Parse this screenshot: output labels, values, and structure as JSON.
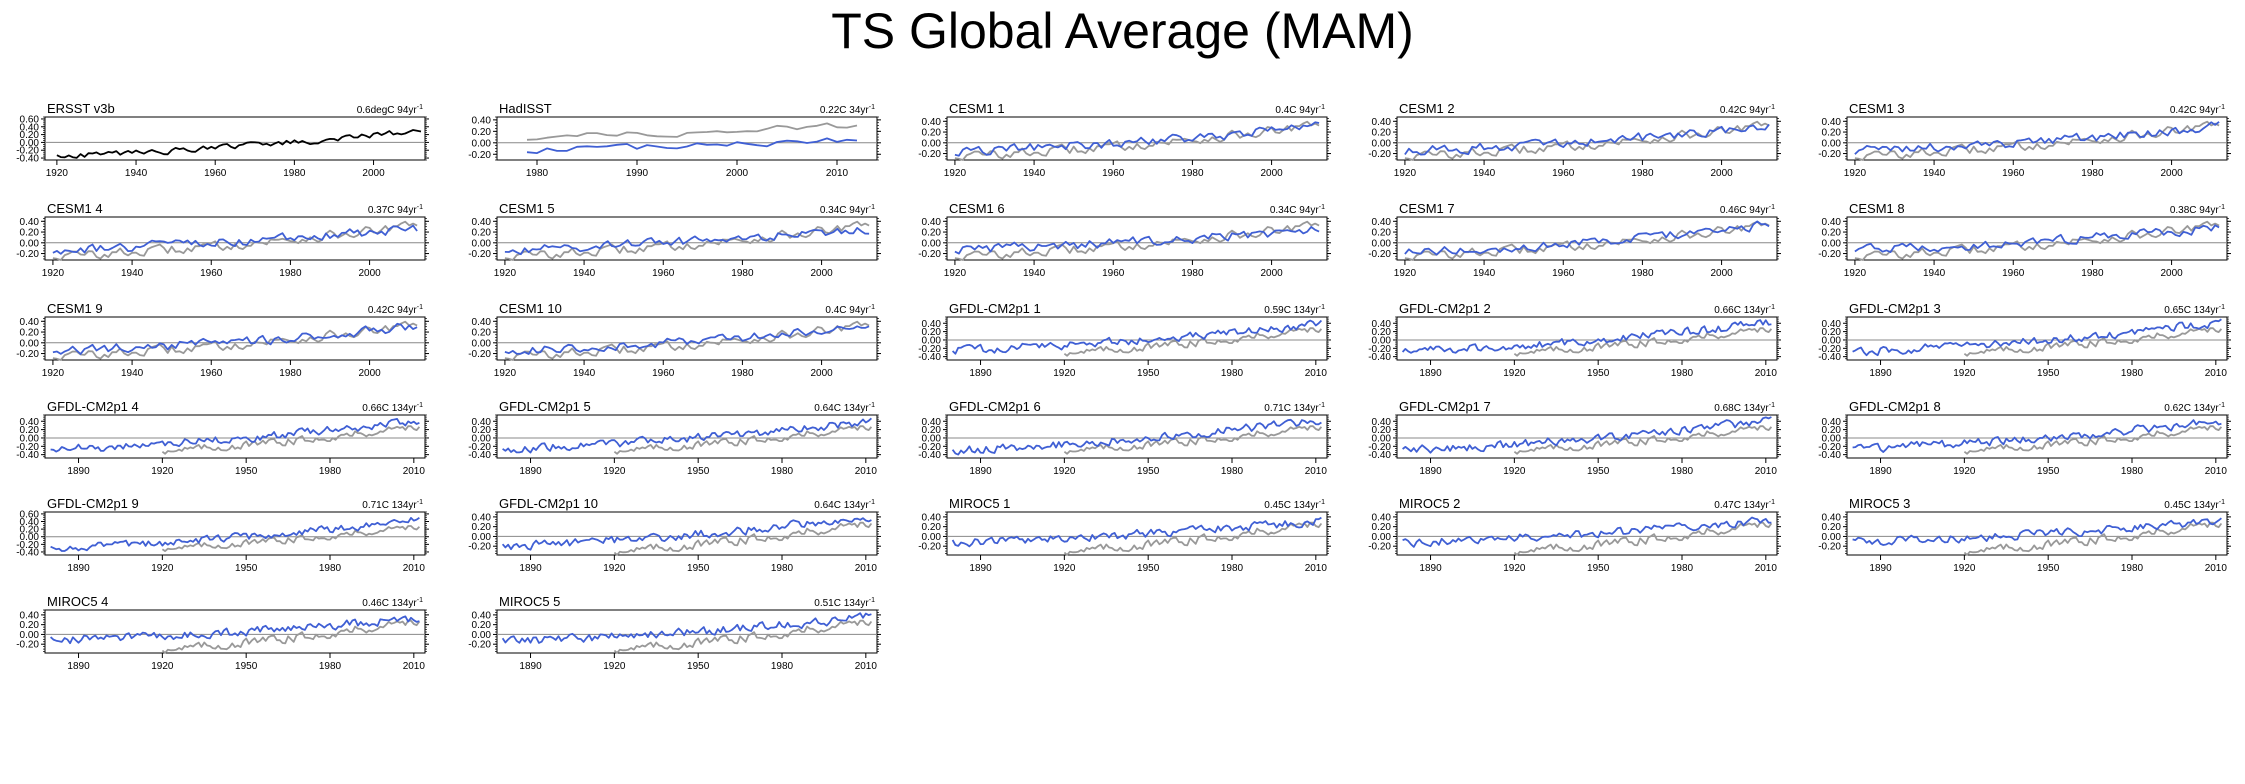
{
  "title": "TS Global Average (MAM)",
  "colors": {
    "observed": "#999999",
    "model": "#3f5fd4",
    "obs_only": "#000000",
    "zero_line": "#888888"
  },
  "axis_sets": {
    "a": {
      "xlim": [
        1917,
        2013
      ],
      "ylim": [
        -0.45,
        0.65
      ],
      "xticks": [
        1920,
        1940,
        1960,
        1980,
        2000
      ],
      "yticks": [
        -0.4,
        -0.2,
        0.0,
        0.2,
        0.4,
        0.6
      ],
      "yticklabels": [
        "-0.40",
        "-0.20",
        "0.00",
        "0.20",
        "0.40",
        "0.60"
      ]
    },
    "b": {
      "xlim": [
        1976,
        2014
      ],
      "ylim": [
        -0.3,
        0.45
      ],
      "xticks": [
        1980,
        1990,
        2000,
        2010
      ],
      "yticks": [
        -0.2,
        0.0,
        0.2,
        0.4
      ],
      "yticklabels": [
        "-0.20",
        "0.00",
        "0.20",
        "0.40"
      ]
    },
    "c": {
      "xlim": [
        1918,
        2014
      ],
      "ylim": [
        -0.32,
        0.48
      ],
      "xticks": [
        1920,
        1940,
        1960,
        1980,
        2000
      ],
      "yticks": [
        -0.2,
        0.0,
        0.2,
        0.4
      ],
      "yticklabels": [
        "-0.20",
        "0.00",
        "0.20",
        "0.40"
      ]
    },
    "d": {
      "xlim": [
        1878,
        2014
      ],
      "ylim": [
        -0.48,
        0.55
      ],
      "xticks": [
        1890,
        1920,
        1950,
        1980,
        2010
      ],
      "yticks": [
        -0.4,
        -0.2,
        0.0,
        0.2,
        0.4
      ],
      "yticklabels": [
        "-0.40",
        "-0.20",
        "0.00",
        "0.20",
        "0.40"
      ]
    },
    "e": {
      "xlim": [
        1878,
        2014
      ],
      "ylim": [
        -0.48,
        0.65
      ],
      "xticks": [
        1890,
        1920,
        1950,
        1980,
        2010
      ],
      "yticks": [
        -0.4,
        -0.2,
        0.0,
        0.2,
        0.4,
        0.6
      ],
      "yticklabels": [
        "-0.40",
        "-0.20",
        "0.00",
        "0.20",
        "0.40",
        "0.60"
      ]
    },
    "f": {
      "xlim": [
        1878,
        2014
      ],
      "ylim": [
        -0.38,
        0.5
      ],
      "xticks": [
        1890,
        1920,
        1950,
        1980,
        2010
      ],
      "yticks": [
        -0.2,
        0.0,
        0.2,
        0.4
      ],
      "yticklabels": [
        "-0.20",
        "0.00",
        "0.20",
        "0.40"
      ]
    }
  },
  "chart_data": [
    {
      "type": "line",
      "name": "ERSST v3b",
      "trend": "0.6degC 94yr",
      "trend_sup": "-1",
      "axes": "a",
      "mode": "obs",
      "model": {
        "start": 1920,
        "end": 2012,
        "y0": -0.35,
        "y1": 0.3,
        "seed": 11,
        "amp": 0.07
      }
    },
    {
      "type": "line",
      "name": "HadISST",
      "trend": "0.22C 34yr",
      "trend_sup": "-1",
      "axes": "b",
      "mode": "hadisst",
      "observed": {
        "start": 1979,
        "end": 2012,
        "y0": 0.1,
        "y1": 0.32,
        "seed": 21,
        "amp": 0.05
      },
      "model": {
        "start": 1979,
        "end": 2012,
        "y0": -0.12,
        "y1": 0.06,
        "seed": 22,
        "amp": 0.05
      }
    },
    {
      "type": "line",
      "name": "CESM1 1",
      "trend": "0.4C 94yr",
      "trend_sup": "-1",
      "axes": "c",
      "mode": "both",
      "observed": {
        "start": 1920,
        "end": 2012,
        "y0": -0.25,
        "y1": 0.32,
        "seed": 1,
        "amp": 0.08
      },
      "model": {
        "start": 1920,
        "end": 2012,
        "y0": -0.15,
        "y1": 0.3,
        "seed": 101,
        "amp": 0.08
      }
    },
    {
      "type": "line",
      "name": "CESM1 2",
      "trend": "0.42C 94yr",
      "trend_sup": "-1",
      "axes": "c",
      "mode": "both",
      "observed": {
        "start": 1920,
        "end": 2012,
        "y0": -0.25,
        "y1": 0.32,
        "seed": 1,
        "amp": 0.08
      },
      "model": {
        "start": 1920,
        "end": 2012,
        "y0": -0.15,
        "y1": 0.31,
        "seed": 102,
        "amp": 0.08
      }
    },
    {
      "type": "line",
      "name": "CESM1 3",
      "trend": "0.42C 94yr",
      "trend_sup": "-1",
      "axes": "c",
      "mode": "both",
      "observed": {
        "start": 1920,
        "end": 2012,
        "y0": -0.25,
        "y1": 0.32,
        "seed": 1,
        "amp": 0.08
      },
      "model": {
        "start": 1920,
        "end": 2012,
        "y0": -0.15,
        "y1": 0.31,
        "seed": 103,
        "amp": 0.08
      }
    },
    {
      "type": "line",
      "name": "CESM1 4",
      "trend": "0.37C 94yr",
      "trend_sup": "-1",
      "axes": "c",
      "mode": "both",
      "observed": {
        "start": 1920,
        "end": 2012,
        "y0": -0.25,
        "y1": 0.32,
        "seed": 1,
        "amp": 0.08
      },
      "model": {
        "start": 1920,
        "end": 2012,
        "y0": -0.13,
        "y1": 0.28,
        "seed": 104,
        "amp": 0.08
      }
    },
    {
      "type": "line",
      "name": "CESM1 5",
      "trend": "0.34C 94yr",
      "trend_sup": "-1",
      "axes": "c",
      "mode": "both",
      "observed": {
        "start": 1920,
        "end": 2012,
        "y0": -0.25,
        "y1": 0.32,
        "seed": 1,
        "amp": 0.08
      },
      "model": {
        "start": 1920,
        "end": 2012,
        "y0": -0.12,
        "y1": 0.26,
        "seed": 105,
        "amp": 0.08
      }
    },
    {
      "type": "line",
      "name": "CESM1 6",
      "trend": "0.34C 94yr",
      "trend_sup": "-1",
      "axes": "c",
      "mode": "both",
      "observed": {
        "start": 1920,
        "end": 2012,
        "y0": -0.25,
        "y1": 0.32,
        "seed": 1,
        "amp": 0.08
      },
      "model": {
        "start": 1920,
        "end": 2012,
        "y0": -0.12,
        "y1": 0.26,
        "seed": 106,
        "amp": 0.08
      }
    },
    {
      "type": "line",
      "name": "CESM1 7",
      "trend": "0.46C 94yr",
      "trend_sup": "-1",
      "axes": "c",
      "mode": "both",
      "observed": {
        "start": 1920,
        "end": 2012,
        "y0": -0.25,
        "y1": 0.32,
        "seed": 1,
        "amp": 0.08
      },
      "model": {
        "start": 1920,
        "end": 2012,
        "y0": -0.17,
        "y1": 0.33,
        "seed": 107,
        "amp": 0.08
      }
    },
    {
      "type": "line",
      "name": "CESM1 8",
      "trend": "0.38C 94yr",
      "trend_sup": "-1",
      "axes": "c",
      "mode": "both",
      "observed": {
        "start": 1920,
        "end": 2012,
        "y0": -0.25,
        "y1": 0.32,
        "seed": 1,
        "amp": 0.08
      },
      "model": {
        "start": 1920,
        "end": 2012,
        "y0": -0.13,
        "y1": 0.29,
        "seed": 108,
        "amp": 0.08
      }
    },
    {
      "type": "line",
      "name": "CESM1 9",
      "trend": "0.42C 94yr",
      "trend_sup": "-1",
      "axes": "c",
      "mode": "both",
      "observed": {
        "start": 1920,
        "end": 2012,
        "y0": -0.25,
        "y1": 0.32,
        "seed": 1,
        "amp": 0.08
      },
      "model": {
        "start": 1920,
        "end": 2012,
        "y0": -0.15,
        "y1": 0.31,
        "seed": 109,
        "amp": 0.08
      }
    },
    {
      "type": "line",
      "name": "CESM1 10",
      "trend": "0.4C 94yr",
      "trend_sup": "-1",
      "axes": "c",
      "mode": "both",
      "observed": {
        "start": 1920,
        "end": 2012,
        "y0": -0.25,
        "y1": 0.32,
        "seed": 1,
        "amp": 0.08
      },
      "model": {
        "start": 1920,
        "end": 2012,
        "y0": -0.15,
        "y1": 0.3,
        "seed": 110,
        "amp": 0.08
      }
    },
    {
      "type": "line",
      "name": "GFDL-CM2p1 1",
      "trend": "0.59C 134yr",
      "trend_sup": "-1",
      "axes": "d",
      "mode": "both",
      "observed": {
        "start": 1920,
        "end": 2012,
        "y0": -0.3,
        "y1": 0.3,
        "seed": 2,
        "amp": 0.08
      },
      "model": {
        "start": 1880,
        "end": 2012,
        "y0": -0.25,
        "y1": 0.4,
        "seed": 111,
        "amp": 0.09
      }
    },
    {
      "type": "line",
      "name": "GFDL-CM2p1 2",
      "trend": "0.66C 134yr",
      "trend_sup": "-1",
      "axes": "d",
      "mode": "both",
      "observed": {
        "start": 1920,
        "end": 2012,
        "y0": -0.3,
        "y1": 0.3,
        "seed": 2,
        "amp": 0.08
      },
      "model": {
        "start": 1880,
        "end": 2012,
        "y0": -0.28,
        "y1": 0.42,
        "seed": 112,
        "amp": 0.09
      }
    },
    {
      "type": "line",
      "name": "GFDL-CM2p1 3",
      "trend": "0.65C 134yr",
      "trend_sup": "-1",
      "axes": "d",
      "mode": "both",
      "observed": {
        "start": 1920,
        "end": 2012,
        "y0": -0.3,
        "y1": 0.3,
        "seed": 2,
        "amp": 0.08
      },
      "model": {
        "start": 1880,
        "end": 2012,
        "y0": -0.28,
        "y1": 0.42,
        "seed": 113,
        "amp": 0.09
      }
    },
    {
      "type": "line",
      "name": "GFDL-CM2p1 4",
      "trend": "0.66C 134yr",
      "trend_sup": "-1",
      "axes": "d",
      "mode": "both",
      "observed": {
        "start": 1920,
        "end": 2012,
        "y0": -0.3,
        "y1": 0.3,
        "seed": 2,
        "amp": 0.08
      },
      "model": {
        "start": 1880,
        "end": 2012,
        "y0": -0.28,
        "y1": 0.42,
        "seed": 114,
        "amp": 0.09
      }
    },
    {
      "type": "line",
      "name": "GFDL-CM2p1 5",
      "trend": "0.64C 134yr",
      "trend_sup": "-1",
      "axes": "d",
      "mode": "both",
      "observed": {
        "start": 1920,
        "end": 2012,
        "y0": -0.3,
        "y1": 0.3,
        "seed": 2,
        "amp": 0.08
      },
      "model": {
        "start": 1880,
        "end": 2012,
        "y0": -0.27,
        "y1": 0.41,
        "seed": 115,
        "amp": 0.09
      }
    },
    {
      "type": "line",
      "name": "GFDL-CM2p1 6",
      "trend": "0.71C 134yr",
      "trend_sup": "-1",
      "axes": "d",
      "mode": "both",
      "observed": {
        "start": 1920,
        "end": 2012,
        "y0": -0.3,
        "y1": 0.3,
        "seed": 2,
        "amp": 0.08
      },
      "model": {
        "start": 1880,
        "end": 2012,
        "y0": -0.3,
        "y1": 0.44,
        "seed": 116,
        "amp": 0.09
      }
    },
    {
      "type": "line",
      "name": "GFDL-CM2p1 7",
      "trend": "0.68C 134yr",
      "trend_sup": "-1",
      "axes": "d",
      "mode": "both",
      "observed": {
        "start": 1920,
        "end": 2012,
        "y0": -0.3,
        "y1": 0.3,
        "seed": 2,
        "amp": 0.08
      },
      "model": {
        "start": 1880,
        "end": 2012,
        "y0": -0.29,
        "y1": 0.43,
        "seed": 117,
        "amp": 0.09
      }
    },
    {
      "type": "line",
      "name": "GFDL-CM2p1 8",
      "trend": "0.62C 134yr",
      "trend_sup": "-1",
      "axes": "d",
      "mode": "both",
      "observed": {
        "start": 1920,
        "end": 2012,
        "y0": -0.3,
        "y1": 0.3,
        "seed": 2,
        "amp": 0.08
      },
      "model": {
        "start": 1880,
        "end": 2012,
        "y0": -0.26,
        "y1": 0.4,
        "seed": 118,
        "amp": 0.09
      }
    },
    {
      "type": "line",
      "name": "GFDL-CM2p1 9",
      "trend": "0.71C 134yr",
      "trend_sup": "-1",
      "axes": "e",
      "mode": "both",
      "observed": {
        "start": 1920,
        "end": 2012,
        "y0": -0.3,
        "y1": 0.3,
        "seed": 2,
        "amp": 0.08
      },
      "model": {
        "start": 1880,
        "end": 2012,
        "y0": -0.3,
        "y1": 0.44,
        "seed": 119,
        "amp": 0.09
      }
    },
    {
      "type": "line",
      "name": "GFDL-CM2p1 10",
      "trend": "0.64C 134yr",
      "trend_sup": "-1",
      "axes": "f",
      "mode": "both",
      "observed": {
        "start": 1920,
        "end": 2012,
        "y0": -0.3,
        "y1": 0.3,
        "seed": 2,
        "amp": 0.08
      },
      "model": {
        "start": 1880,
        "end": 2012,
        "y0": -0.2,
        "y1": 0.4,
        "seed": 120,
        "amp": 0.08
      }
    },
    {
      "type": "line",
      "name": "MIROC5 1",
      "trend": "0.45C 134yr",
      "trend_sup": "-1",
      "axes": "f",
      "mode": "both",
      "observed": {
        "start": 1920,
        "end": 2012,
        "y0": -0.3,
        "y1": 0.3,
        "seed": 2,
        "amp": 0.08
      },
      "model": {
        "start": 1880,
        "end": 2012,
        "y0": -0.12,
        "y1": 0.33,
        "seed": 121,
        "amp": 0.08
      }
    },
    {
      "type": "line",
      "name": "MIROC5 2",
      "trend": "0.47C 134yr",
      "trend_sup": "-1",
      "axes": "f",
      "mode": "both",
      "observed": {
        "start": 1920,
        "end": 2012,
        "y0": -0.3,
        "y1": 0.3,
        "seed": 2,
        "amp": 0.08
      },
      "model": {
        "start": 1880,
        "end": 2012,
        "y0": -0.13,
        "y1": 0.34,
        "seed": 122,
        "amp": 0.08
      }
    },
    {
      "type": "line",
      "name": "MIROC5 3",
      "trend": "0.45C 134yr",
      "trend_sup": "-1",
      "axes": "f",
      "mode": "both",
      "observed": {
        "start": 1920,
        "end": 2012,
        "y0": -0.3,
        "y1": 0.3,
        "seed": 2,
        "amp": 0.08
      },
      "model": {
        "start": 1880,
        "end": 2012,
        "y0": -0.12,
        "y1": 0.33,
        "seed": 123,
        "amp": 0.08
      }
    },
    {
      "type": "line",
      "name": "MIROC5 4",
      "trend": "0.46C 134yr",
      "trend_sup": "-1",
      "axes": "f",
      "mode": "both",
      "observed": {
        "start": 1920,
        "end": 2012,
        "y0": -0.3,
        "y1": 0.3,
        "seed": 2,
        "amp": 0.08
      },
      "model": {
        "start": 1880,
        "end": 2012,
        "y0": -0.12,
        "y1": 0.34,
        "seed": 124,
        "amp": 0.08
      }
    },
    {
      "type": "line",
      "name": "MIROC5 5",
      "trend": "0.51C 134yr",
      "trend_sup": "-1",
      "axes": "f",
      "mode": "both",
      "observed": {
        "start": 1920,
        "end": 2012,
        "y0": -0.3,
        "y1": 0.3,
        "seed": 2,
        "amp": 0.08
      },
      "model": {
        "start": 1880,
        "end": 2012,
        "y0": -0.15,
        "y1": 0.36,
        "seed": 125,
        "amp": 0.08
      }
    }
  ]
}
